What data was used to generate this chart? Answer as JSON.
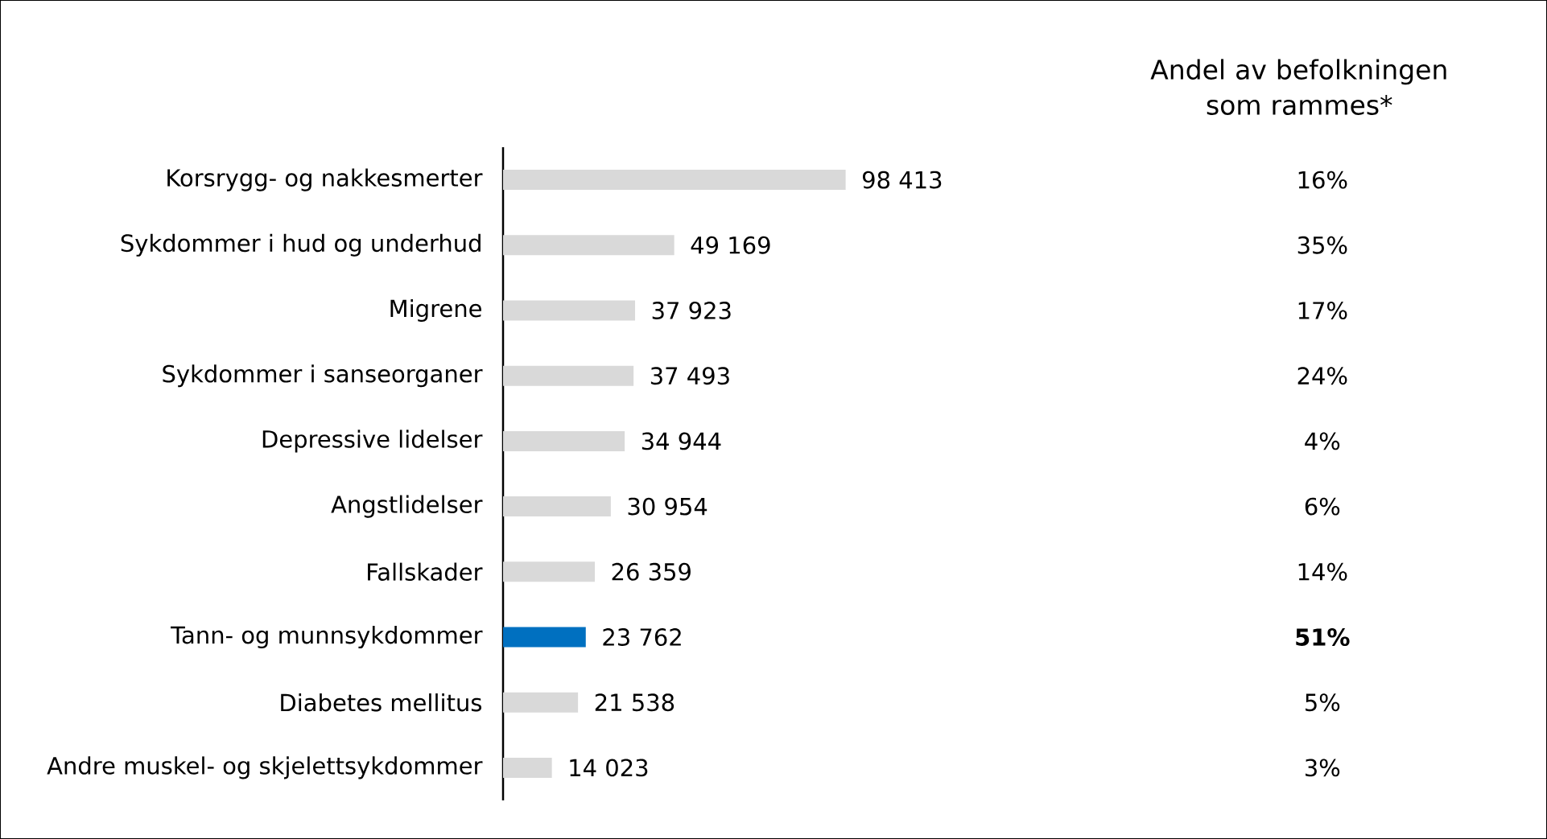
{
  "chart_data": {
    "type": "bar",
    "orientation": "horizontal",
    "categories": [
      "Korsrygg- og nakkesmerter",
      "Sykdommer i hud og underhud",
      "Migrene",
      "Sykdommer i sanseorganer",
      "Depressive lidelser",
      "Angstlidelser",
      "Fallskader",
      "Tann- og munnsykdommer",
      "Diabetes mellitus",
      "Andre muskel- og skjelettsykdommer"
    ],
    "values": [
      98413,
      49169,
      37923,
      37493,
      34944,
      30954,
      26359,
      23762,
      21538,
      14023
    ],
    "value_labels": [
      "98 413",
      "49 169",
      "37 923",
      "37 493",
      "34 944",
      "30 954",
      "26 359",
      "23 762",
      "21 538",
      "14 023"
    ],
    "colors": [
      "#d9d9d9",
      "#d9d9d9",
      "#d9d9d9",
      "#d9d9d9",
      "#d9d9d9",
      "#d9d9d9",
      "#d9d9d9",
      "#0070c0",
      "#d9d9d9",
      "#d9d9d9"
    ],
    "tick_labels": "y",
    "annotations": [
      "Andel av befolkningen som rammes*",
      "16%",
      "35%",
      "17%",
      "24%",
      "4%",
      "6%",
      "14%",
      "**51%**",
      "5%",
      "3%"
    ]
  }
}
